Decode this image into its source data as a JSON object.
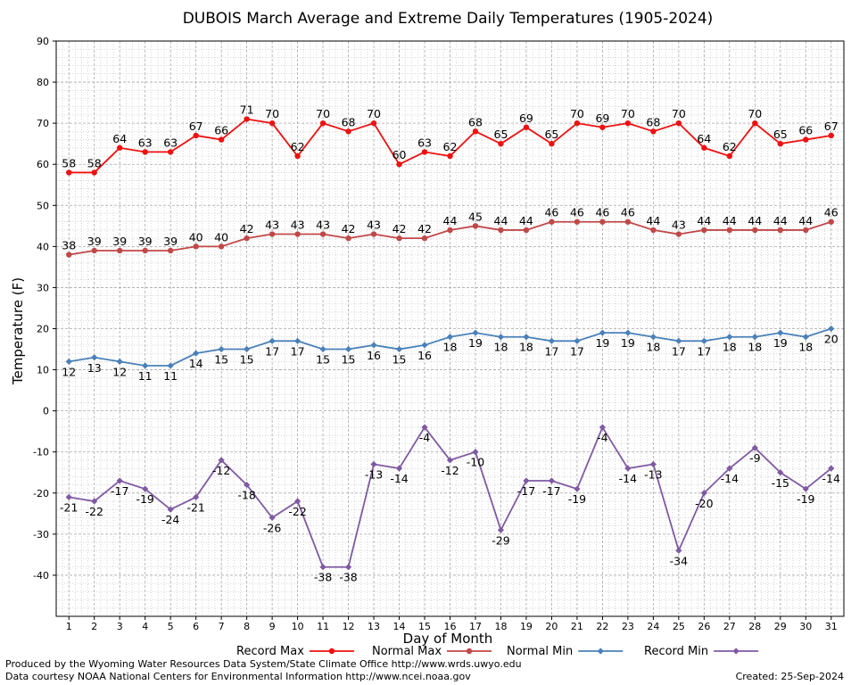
{
  "chart_data": {
    "type": "line",
    "title": "DUBOIS March Average and Extreme Daily Temperatures (1905-2024)",
    "xlabel": "Day of Month",
    "ylabel": "Temperature (F)",
    "x": [
      1,
      2,
      3,
      4,
      5,
      6,
      7,
      8,
      9,
      10,
      11,
      12,
      13,
      14,
      15,
      16,
      17,
      18,
      19,
      20,
      21,
      22,
      23,
      24,
      25,
      26,
      27,
      28,
      29,
      30,
      31
    ],
    "xlim": [
      0.5,
      31.5
    ],
    "ylim": [
      -50,
      90
    ],
    "yticks": [
      -40,
      -30,
      -20,
      -10,
      0,
      10,
      20,
      30,
      40,
      50,
      60,
      70,
      80,
      90
    ],
    "grid": true,
    "legend_position": "bottom",
    "series": [
      {
        "name": "Record Max",
        "color": "#ee1111",
        "values": [
          58,
          58,
          64,
          63,
          63,
          67,
          66,
          71,
          70,
          62,
          70,
          68,
          70,
          60,
          63,
          62,
          68,
          65,
          69,
          65,
          70,
          69,
          70,
          68,
          70,
          64,
          62,
          70,
          65,
          66,
          67
        ]
      },
      {
        "name": "Normal Max",
        "color": "#c04848",
        "values": [
          38,
          39,
          39,
          39,
          39,
          40,
          40,
          42,
          43,
          43,
          43,
          42,
          43,
          42,
          42,
          44,
          45,
          44,
          44,
          46,
          46,
          46,
          46,
          44,
          43,
          44,
          44,
          44,
          44,
          44,
          46
        ]
      },
      {
        "name": "Normal Min",
        "color": "#4a80b8",
        "values": [
          12,
          13,
          12,
          11,
          11,
          14,
          15,
          15,
          17,
          17,
          15,
          15,
          16,
          15,
          16,
          18,
          19,
          18,
          18,
          17,
          17,
          19,
          19,
          18,
          17,
          17,
          18,
          18,
          19,
          18,
          20
        ]
      },
      {
        "name": "Record Min",
        "color": "#7f5aa2",
        "values": [
          -21,
          -22,
          -17,
          -19,
          -24,
          -21,
          -12,
          -18,
          -26,
          -22,
          -38,
          -38,
          -13,
          -14,
          -4,
          -12,
          -10,
          -29,
          -17,
          -17,
          -19,
          -4,
          -14,
          -13,
          -34,
          -20,
          -14,
          -9,
          -15,
          -19,
          -14
        ]
      }
    ]
  },
  "footer": {
    "produced_by": "Produced by the Wyoming Water Resources Data System/State Climate Office http://www.wrds.uwyo.edu",
    "data_courtesy": "Data courtesy NOAA National Centers for Environmental Information http://www.ncei.noaa.gov",
    "created": "Created:  25-Sep-2024"
  }
}
